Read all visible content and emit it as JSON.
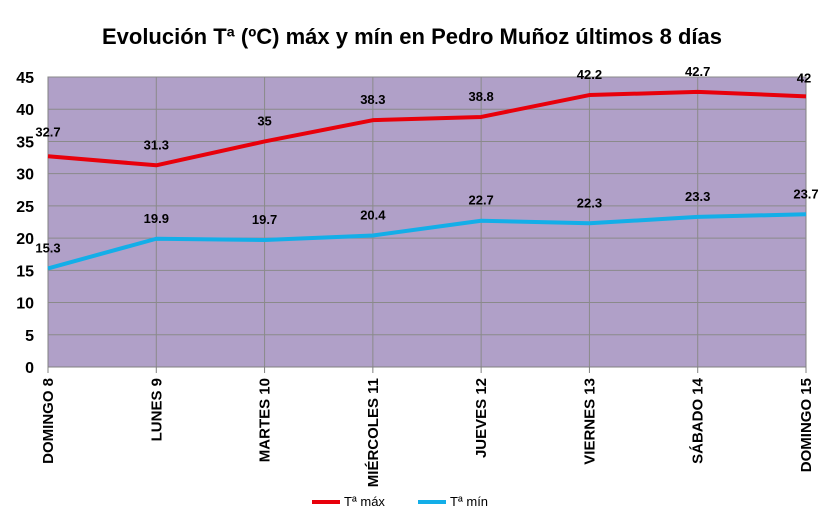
{
  "chart_data": {
    "type": "line",
    "title": "Evolución Tª (ºC) máx y mín en Pedro Muñoz últimos 8 días",
    "categories": [
      "DOMINGO 8",
      "LUNES 9",
      "MARTES 10",
      "MIÉRCOLES 11",
      "JUEVES 12",
      "VIERNES 13",
      "SÁBADO 14",
      "DOMINGO 15"
    ],
    "series": [
      {
        "name": "Tª máx",
        "values": [
          32.7,
          31.3,
          35,
          38.3,
          38.8,
          42.2,
          42.7,
          42
        ],
        "color": "#e8000b"
      },
      {
        "name": "Tª mín",
        "values": [
          15.3,
          19.9,
          19.7,
          20.4,
          22.7,
          22.3,
          23.3,
          23.7
        ],
        "color": "#13aee8"
      }
    ],
    "y_ticks": [
      0,
      5,
      10,
      15,
      20,
      25,
      30,
      35,
      40,
      45
    ],
    "ylim": [
      0,
      45
    ],
    "grid": true,
    "plot_background": "#b0a0c8",
    "legend_position": "bottom"
  }
}
